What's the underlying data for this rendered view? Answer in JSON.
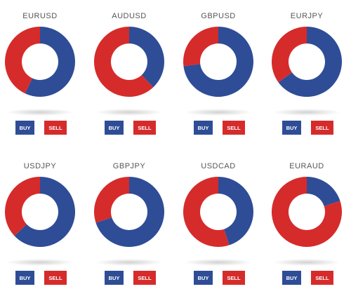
{
  "chart_data": [
    {
      "type": "donut",
      "title": "EURUSD",
      "categories": [
        "BUY",
        "SELL"
      ],
      "values": [
        57,
        43
      ],
      "colors": [
        "#2e4d96",
        "#d62b2b"
      ]
    },
    {
      "type": "donut",
      "title": "AUDUSD",
      "categories": [
        "BUY",
        "SELL"
      ],
      "values": [
        38,
        62
      ],
      "colors": [
        "#2e4d96",
        "#d62b2b"
      ]
    },
    {
      "type": "donut",
      "title": "GBPUSD",
      "categories": [
        "BUY",
        "SELL"
      ],
      "values": [
        73,
        27
      ],
      "colors": [
        "#2e4d96",
        "#d62b2b"
      ]
    },
    {
      "type": "donut",
      "title": "EURJPY",
      "categories": [
        "BUY",
        "SELL"
      ],
      "values": [
        65,
        35
      ],
      "colors": [
        "#2e4d96",
        "#d62b2b"
      ]
    },
    {
      "type": "donut",
      "title": "USDJPY",
      "categories": [
        "BUY",
        "SELL"
      ],
      "values": [
        63,
        37
      ],
      "colors": [
        "#2e4d96",
        "#d62b2b"
      ]
    },
    {
      "type": "donut",
      "title": "GBPJPY",
      "categories": [
        "BUY",
        "SELL"
      ],
      "values": [
        70,
        30
      ],
      "colors": [
        "#2e4d96",
        "#d62b2b"
      ]
    },
    {
      "type": "donut",
      "title": "USDCAD",
      "categories": [
        "BUY",
        "SELL"
      ],
      "values": [
        45,
        55
      ],
      "colors": [
        "#2e4d96",
        "#d62b2b"
      ]
    },
    {
      "type": "donut",
      "title": "EURAUD",
      "categories": [
        "BUY",
        "SELL"
      ],
      "values": [
        20,
        80
      ],
      "colors": [
        "#2e4d96",
        "#d62b2b"
      ]
    }
  ]
}
